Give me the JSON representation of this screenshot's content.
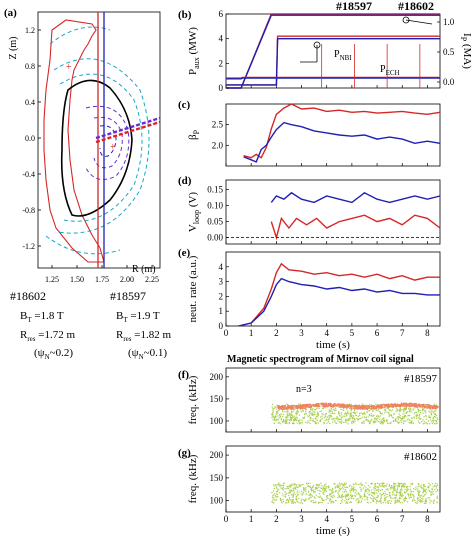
{
  "colors": {
    "red": "#d62728",
    "blue": "#1f1fb4",
    "cyan": "#17a6c9",
    "purple": "#6a2bd6",
    "orange": "#f08060",
    "green": "#a6cf4a",
    "black": "#000000"
  },
  "panel_a": {
    "label": "(a)",
    "zlabel": "Z (m)",
    "rlabel": "R (m)",
    "r_ticks": [
      "1.25",
      "1.50",
      "1.75",
      "2.00",
      "2.25"
    ],
    "z_ticks": [
      "1.2",
      "0.8",
      "0.4",
      "0.0",
      "-0.4",
      "-0.8",
      "-1.2"
    ],
    "shot_red": {
      "id": "#18602",
      "bt": "B",
      "bt_sub": "T",
      "bt_val": " =1.8 T",
      "rres": "R",
      "rres_sub": "res",
      "rres_val": " =1.72 m",
      "psi": "(ψ",
      "psi_sub": "N",
      "psi_val": "~0.2)"
    },
    "shot_blue": {
      "id": "#18597",
      "bt": "B",
      "bt_sub": "T",
      "bt_val": " =1.9 T",
      "rres": "R",
      "rres_sub": "res",
      "rres_val": " =1.82 m",
      "psi": "(ψ",
      "psi_sub": "N",
      "psi_val": "~0.1)"
    }
  },
  "header": {
    "shot_blue": "#18597",
    "shot_red": "#18602"
  },
  "panel_labels": {
    "b": "(b)",
    "c": "(c)",
    "d": "(d)",
    "e": "(e)",
    "f": "(f)",
    "g": "(g)"
  },
  "chart_data": [
    {
      "type": "line",
      "panel": "b",
      "ylabel": "P",
      "ylabel_sub": "aux",
      "ylabel_unit": " (MW)",
      "y2label": "I",
      "y2label_sub": "P",
      "y2label_unit": " (MA)",
      "ylim": [
        0,
        6
      ],
      "yticks": [
        0,
        2,
        4,
        6
      ],
      "y2ticks": [
        "0.0",
        "0.5",
        "1.0"
      ],
      "annotations": [
        {
          "text": "P",
          "sub": "NBI"
        },
        {
          "text": "P",
          "sub": "ECH"
        }
      ],
      "series": [
        {
          "color": "red",
          "x": [
            0,
            0.6,
            1.8,
            8.5
          ],
          "y": [
            0,
            0,
            6.0,
            6.0
          ]
        },
        {
          "color": "blue",
          "x": [
            0,
            0.6,
            1.8,
            8.5
          ],
          "y": [
            0,
            0,
            5.9,
            5.9
          ]
        },
        {
          "color": "red",
          "x": [
            0,
            2,
            2.05,
            8.5
          ],
          "y": [
            0.25,
            0.25,
            4.2,
            4.2
          ]
        },
        {
          "color": "blue",
          "x": [
            0,
            2,
            2.05,
            8.5
          ],
          "y": [
            0.25,
            0.25,
            4.0,
            4.0
          ]
        },
        {
          "color": "red",
          "x": [
            0,
            0.6,
            0.65,
            8.5
          ],
          "y": [
            0.8,
            0.8,
            0.85,
            0.85
          ]
        },
        {
          "color": "blue",
          "x": [
            0,
            0.6,
            0.65,
            8.5
          ],
          "y": [
            0.75,
            0.75,
            0.8,
            0.8
          ]
        }
      ]
    },
    {
      "type": "line",
      "panel": "c",
      "ylabel": "β",
      "ylabel_sub": "P",
      "ylim": [
        1.5,
        3.0
      ],
      "yticks": [
        "2.0",
        "2.5"
      ],
      "series": [
        {
          "color": "red",
          "x": [
            0.7,
            1.0,
            1.2,
            1.4,
            1.6,
            1.8,
            2.0,
            2.3,
            2.6,
            3.0,
            3.5,
            4.0,
            4.5,
            5.0,
            5.5,
            6.0,
            6.5,
            7.0,
            7.5,
            8.0,
            8.5
          ],
          "y": [
            1.75,
            1.7,
            1.78,
            1.7,
            1.95,
            2.4,
            2.75,
            2.9,
            3.0,
            2.88,
            2.9,
            2.82,
            2.85,
            2.8,
            2.82,
            2.78,
            2.8,
            2.82,
            2.78,
            2.75,
            2.8
          ]
        },
        {
          "color": "blue",
          "x": [
            0.7,
            1.0,
            1.2,
            1.4,
            1.6,
            1.8,
            2.0,
            2.3,
            2.6,
            3.0,
            3.5,
            4.0,
            4.5,
            5.0,
            5.5,
            6.0,
            6.5,
            7.0,
            7.5,
            8.0,
            8.5
          ],
          "y": [
            1.72,
            1.65,
            1.6,
            1.9,
            2.0,
            2.2,
            2.38,
            2.55,
            2.5,
            2.45,
            2.35,
            2.3,
            2.25,
            2.22,
            2.25,
            2.15,
            2.2,
            2.15,
            2.05,
            2.1,
            2.05
          ]
        }
      ]
    },
    {
      "type": "line",
      "panel": "d",
      "ylabel": "V",
      "ylabel_sub": "loop",
      "ylabel_unit": " (V)",
      "ylim": [
        -0.02,
        0.18
      ],
      "yticks": [
        "0.00",
        "0.05",
        "0.10",
        "0.15"
      ],
      "series": [
        {
          "color": "blue",
          "x": [
            1.8,
            2.0,
            2.3,
            2.6,
            3.0,
            3.5,
            4.0,
            4.5,
            5.0,
            5.5,
            6.0,
            6.5,
            7.0,
            7.5,
            8.0,
            8.5
          ],
          "y": [
            0.11,
            0.13,
            0.12,
            0.14,
            0.12,
            0.11,
            0.13,
            0.12,
            0.11,
            0.14,
            0.12,
            0.11,
            0.12,
            0.13,
            0.12,
            0.13
          ]
        },
        {
          "color": "red",
          "x": [
            1.8,
            2.0,
            2.2,
            2.5,
            2.8,
            3.2,
            3.6,
            4.0,
            4.5,
            5.0,
            5.5,
            6.0,
            6.5,
            7.0,
            7.5,
            8.0,
            8.5
          ],
          "y": [
            0.05,
            0.0,
            0.06,
            0.03,
            0.06,
            0.04,
            0.06,
            0.03,
            0.05,
            0.06,
            0.07,
            0.05,
            0.06,
            0.04,
            0.07,
            0.06,
            0.03
          ]
        }
      ]
    },
    {
      "type": "line",
      "panel": "e",
      "ylabel": "neut. rate",
      "ylabel_unit": " (a.u.)",
      "ylim": [
        0,
        5
      ],
      "yticks": [
        0,
        1,
        2,
        3,
        4
      ],
      "series": [
        {
          "color": "red",
          "x": [
            0.5,
            1.0,
            1.5,
            1.8,
            2.0,
            2.2,
            2.5,
            3.0,
            3.5,
            4.0,
            4.5,
            5.0,
            5.5,
            6.0,
            6.5,
            7.0,
            7.5,
            8.0,
            8.5
          ],
          "y": [
            0,
            0.2,
            1.2,
            2.5,
            3.6,
            4.2,
            3.8,
            3.7,
            3.5,
            3.6,
            3.4,
            3.5,
            3.3,
            3.5,
            3.2,
            3.4,
            3.1,
            3.3,
            3.3
          ]
        },
        {
          "color": "blue",
          "x": [
            0.5,
            1.0,
            1.5,
            1.8,
            2.0,
            2.2,
            2.5,
            3.0,
            3.5,
            4.0,
            4.5,
            5.0,
            5.5,
            6.0,
            6.5,
            7.0,
            7.5,
            8.0,
            8.5
          ],
          "y": [
            0,
            0.2,
            1.0,
            2.0,
            2.8,
            3.2,
            3.0,
            2.8,
            2.7,
            2.5,
            2.6,
            2.4,
            2.5,
            2.3,
            2.4,
            2.2,
            2.2,
            2.1,
            2.1
          ]
        }
      ]
    },
    {
      "type": "heatmap",
      "panel": "f",
      "title": "Magnetic spectrogram of Mirnov coil signal",
      "shot": "#18597",
      "mode_label": "n=3",
      "ylabel": "freq. (kHz)",
      "yticks": [
        100,
        150,
        200
      ],
      "ylim": [
        75,
        220
      ]
    },
    {
      "type": "heatmap",
      "panel": "g",
      "shot": "#18602",
      "ylabel": "freq. (kHz)",
      "yticks": [
        100,
        150,
        200
      ],
      "ylim": [
        75,
        220
      ],
      "xlabel": "time (s)",
      "xticks": [
        0,
        1,
        2,
        3,
        4,
        5,
        6,
        7,
        8
      ],
      "xlim": [
        0,
        8.5
      ]
    }
  ],
  "xlabel_time": "time (s)",
  "xticks_time": [
    "0",
    "1",
    "2",
    "3",
    "4",
    "5",
    "6",
    "7",
    "8"
  ]
}
